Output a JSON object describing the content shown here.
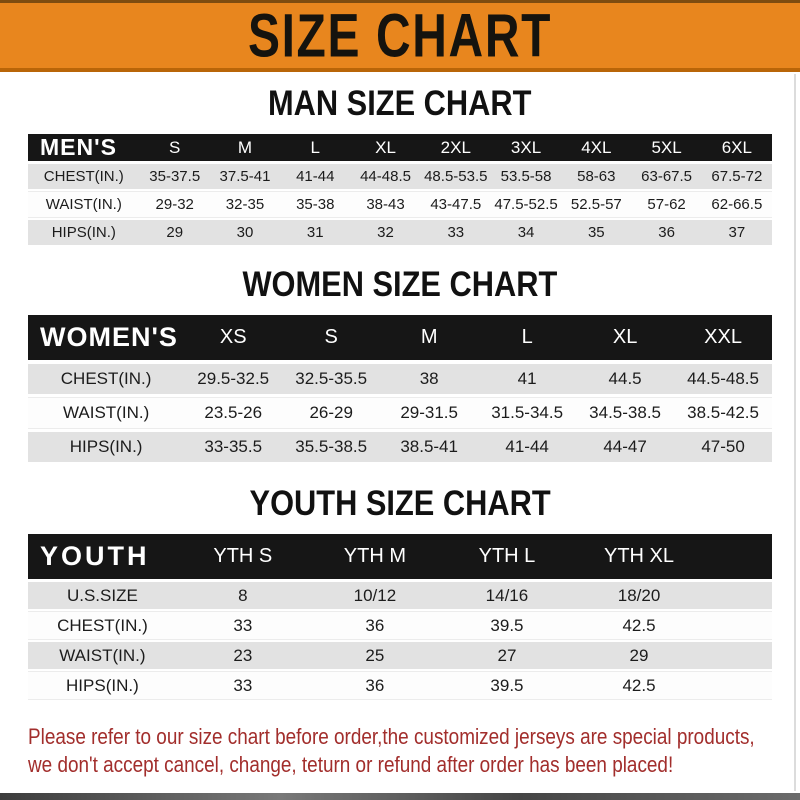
{
  "page": {
    "title": "SIZE CHART",
    "footer_line1": "Please refer to our size chart before order,the customized jerseys are special products,",
    "footer_line2": "we don't accept cancel, change, teturn or refund after order has been placed!"
  },
  "colors": {
    "banner_orange": "#E8861E",
    "header_bar_black": "#161616",
    "row_gray": "#E2E2E2",
    "footer_red": "#A22E2C"
  },
  "tables": [
    {
      "id": "men",
      "heading": "MAN SIZE CHART",
      "label": "MEN'S",
      "columns": [
        "S",
        "M",
        "L",
        "XL",
        "2XL",
        "3XL",
        "4XL",
        "5XL",
        "6XL"
      ],
      "rows": [
        {
          "label": "CHEST(IN.)",
          "values": [
            "35-37.5",
            "37.5-41",
            "41-44",
            "44-48.5",
            "48.5-53.5",
            "53.5-58",
            "58-63",
            "63-67.5",
            "67.5-72"
          ]
        },
        {
          "label": "WAIST(IN.)",
          "values": [
            "29-32",
            "32-35",
            "35-38",
            "38-43",
            "43-47.5",
            "47.5-52.5",
            "52.5-57",
            "57-62",
            "62-66.5"
          ]
        },
        {
          "label": "HIPS(IN.)",
          "values": [
            "29",
            "30",
            "31",
            "32",
            "33",
            "34",
            "35",
            "36",
            "37"
          ]
        }
      ]
    },
    {
      "id": "women",
      "heading": "WOMEN SIZE CHART",
      "label": "WOMEN'S",
      "columns": [
        "XS",
        "S",
        "M",
        "L",
        "XL",
        "XXL"
      ],
      "rows": [
        {
          "label": "CHEST(IN.)",
          "values": [
            "29.5-32.5",
            "32.5-35.5",
            "38",
            "41",
            "44.5",
            "44.5-48.5"
          ]
        },
        {
          "label": "WAIST(IN.)",
          "values": [
            "23.5-26",
            "26-29",
            "29-31.5",
            "31.5-34.5",
            "34.5-38.5",
            "38.5-42.5"
          ]
        },
        {
          "label": "HIPS(IN.)",
          "values": [
            "33-35.5",
            "35.5-38.5",
            "38.5-41",
            "41-44",
            "44-47",
            "47-50"
          ]
        }
      ]
    },
    {
      "id": "youth",
      "heading": "YOUTH SIZE CHART",
      "label": "YOUTH",
      "columns": [
        "YTH S",
        "YTH M",
        "YTH L",
        "YTH XL"
      ],
      "rows": [
        {
          "label": "U.S.SIZE",
          "values": [
            "8",
            "10/12",
            "14/16",
            "18/20"
          ]
        },
        {
          "label": "CHEST(IN.)",
          "values": [
            "33",
            "36",
            "39.5",
            "42.5"
          ]
        },
        {
          "label": "WAIST(IN.)",
          "values": [
            "23",
            "25",
            "27",
            "29"
          ]
        },
        {
          "label": "HIPS(IN.)",
          "values": [
            "33",
            "36",
            "39.5",
            "42.5"
          ]
        }
      ]
    }
  ]
}
